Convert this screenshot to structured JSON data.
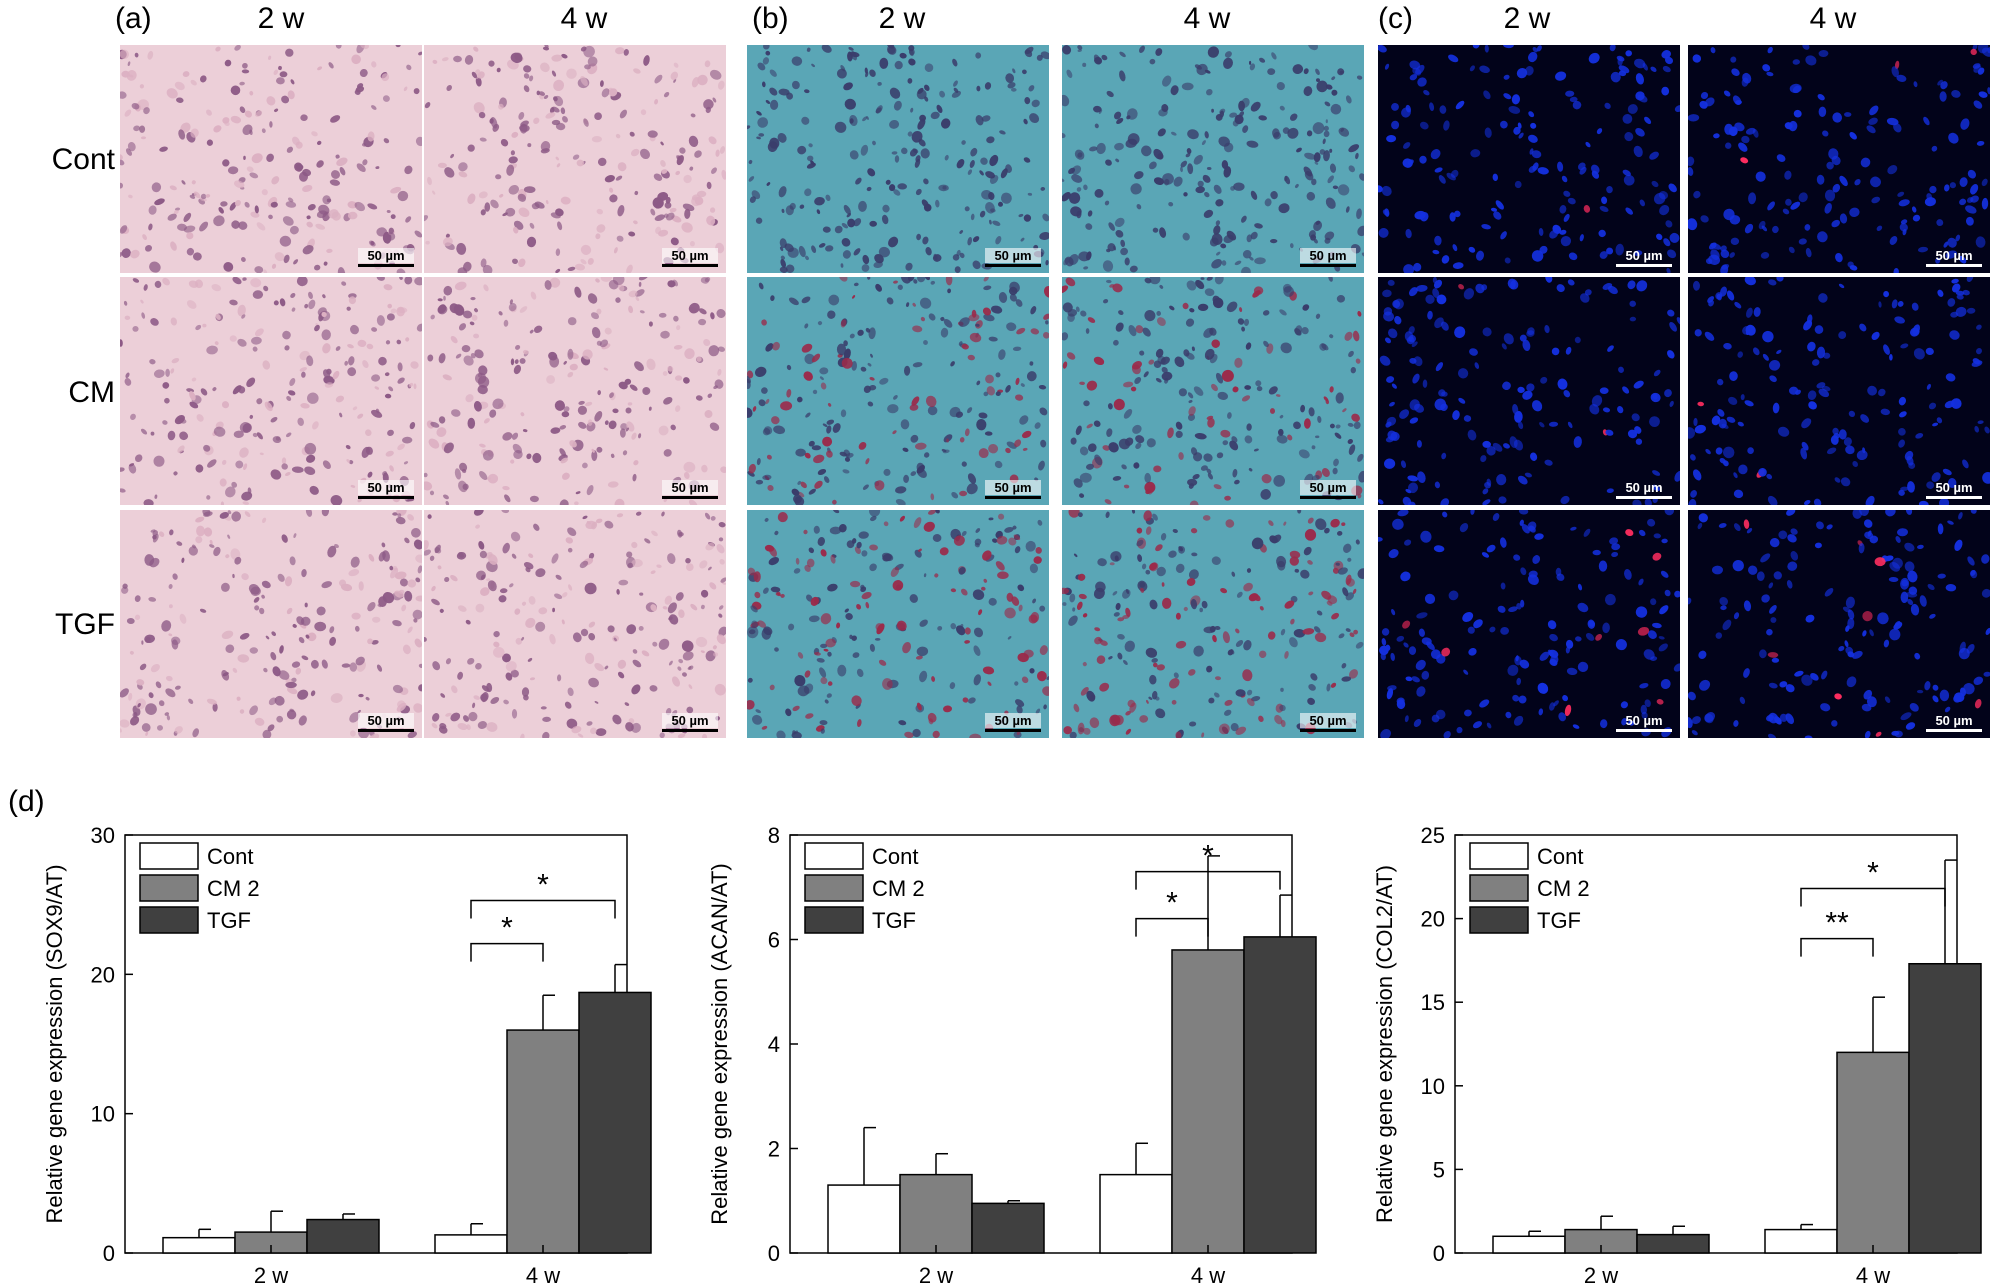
{
  "figure": {
    "panel_labels": [
      "(a)",
      "(b)",
      "(c)",
      "(d)"
    ],
    "time_labels": [
      "2 w",
      "4 w"
    ],
    "row_labels": [
      "Cont",
      "CM",
      "TGF"
    ],
    "scale_bar": "50 µm",
    "panels": [
      {
        "id": "a",
        "stain": "he",
        "colors": {
          "bg": "#eccfd8",
          "cell": "#8d5a86",
          "mid": "#dcb0c2"
        }
      },
      {
        "id": "b",
        "stain": "safranin",
        "colors": {
          "bg": "#5aa6b6",
          "cell": "#3a3d6b",
          "red": "#9b2a4a"
        }
      },
      {
        "id": "c",
        "stain": "fluor",
        "colors": {
          "bg": "#02031a",
          "cell": "#1430e0",
          "red": "#ff2d60"
        }
      }
    ]
  },
  "chart_data": [
    {
      "type": "bar",
      "ylabel": "Relative gene expression (SOX9/AT)",
      "categories": [
        "2 w",
        "4 w"
      ],
      "ylim": [
        0,
        30
      ],
      "yticks": [
        "0",
        "10",
        "20",
        "30"
      ],
      "series": [
        {
          "name": "Cont",
          "values": [
            1.1,
            1.3
          ],
          "errors": [
            0.6,
            0.8
          ],
          "color": "#ffffff"
        },
        {
          "name": "CM 2",
          "values": [
            1.5,
            16.0
          ],
          "errors": [
            1.5,
            2.5
          ],
          "color": "#808080"
        },
        {
          "name": "TGF",
          "values": [
            2.4,
            18.7
          ],
          "errors": [
            0.4,
            2.0
          ],
          "color": "#404040"
        }
      ],
      "significance": [
        {
          "label": "*",
          "from": "Cont",
          "to": "CM 2",
          "group": "4 w",
          "y": 22.2
        },
        {
          "label": "*",
          "from": "Cont",
          "to": "TGF",
          "group": "4 w",
          "y": 25.3
        }
      ]
    },
    {
      "type": "bar",
      "ylabel": "Relative gene expression (ACAN/AT)",
      "categories": [
        "2 w",
        "4 w"
      ],
      "ylim": [
        0,
        8
      ],
      "yticks": [
        "0",
        "2",
        "4",
        "6",
        "8"
      ],
      "series": [
        {
          "name": "Cont",
          "values": [
            1.3,
            1.5
          ],
          "errors": [
            1.1,
            0.6
          ],
          "color": "#ffffff"
        },
        {
          "name": "CM 2",
          "values": [
            1.5,
            5.8
          ],
          "errors": [
            0.4,
            1.8
          ],
          "color": "#808080"
        },
        {
          "name": "TGF",
          "values": [
            0.95,
            6.05
          ],
          "errors": [
            0.05,
            0.8
          ],
          "color": "#404040"
        }
      ],
      "significance": [
        {
          "label": "*",
          "from": "Cont",
          "to": "CM 2",
          "group": "4 w",
          "y": 6.4
        },
        {
          "label": "*",
          "from": "Cont",
          "to": "TGF",
          "group": "4 w",
          "y": 7.3
        }
      ]
    },
    {
      "type": "bar",
      "ylabel": "Relative gene expression (COL2/AT)",
      "categories": [
        "2 w",
        "4 w"
      ],
      "ylim": [
        0,
        25
      ],
      "yticks": [
        "0",
        "5",
        "10",
        "15",
        "20",
        "25"
      ],
      "series": [
        {
          "name": "Cont",
          "values": [
            1.0,
            1.4
          ],
          "errors": [
            0.3,
            0.3
          ],
          "color": "#ffffff"
        },
        {
          "name": "CM 2",
          "values": [
            1.4,
            12.0
          ],
          "errors": [
            0.8,
            3.3
          ],
          "color": "#808080"
        },
        {
          "name": "TGF",
          "values": [
            1.1,
            17.3
          ],
          "errors": [
            0.5,
            6.2
          ],
          "color": "#404040"
        }
      ],
      "significance": [
        {
          "label": "**",
          "from": "Cont",
          "to": "CM 2",
          "group": "4 w",
          "y": 18.8
        },
        {
          "label": "*",
          "from": "Cont",
          "to": "TGF",
          "group": "4 w",
          "y": 21.8
        }
      ]
    }
  ]
}
